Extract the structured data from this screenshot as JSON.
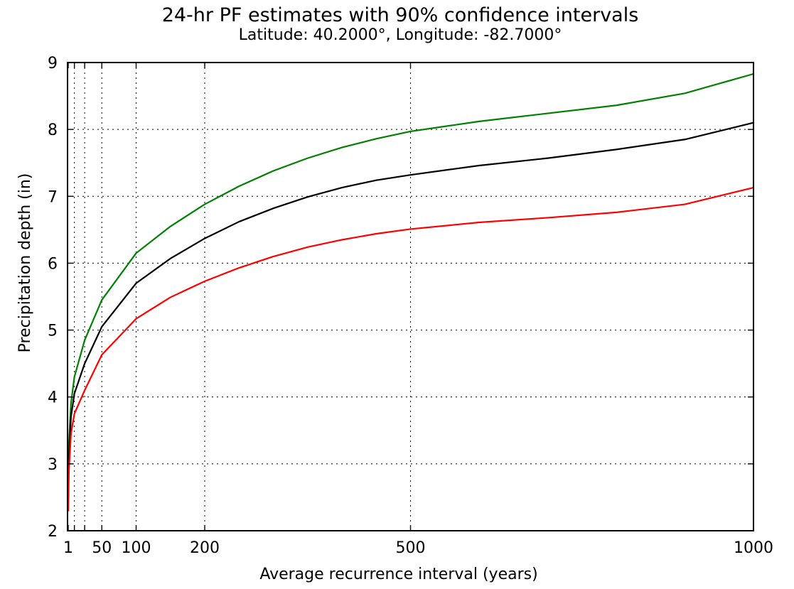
{
  "chart_data": {
    "type": "line",
    "title": "24-hr PF estimates with 90% confidence intervals",
    "subtitle": "Latitude: 40.2000°, Longitude: -82.7000°",
    "xlabel": "Average recurrence interval (years)",
    "ylabel": "Precipitation depth (in)",
    "xlim": [
      0,
      1000
    ],
    "ylim": [
      2,
      9
    ],
    "xticks": [
      1,
      10,
      25,
      50,
      100,
      200,
      500,
      1000
    ],
    "xtick_labels": [
      "1",
      "",
      "",
      "50",
      "100",
      "200",
      "500",
      "1000"
    ],
    "yticks": [
      2,
      3,
      4,
      5,
      6,
      7,
      8,
      9
    ],
    "ytick_labels": [
      "2",
      "3",
      "4",
      "5",
      "6",
      "7",
      "8",
      "9"
    ],
    "grid": true,
    "series": [
      {
        "color": "#008000",
        "x": [
          1,
          2,
          5,
          10,
          25,
          50,
          100,
          150,
          200,
          250,
          300,
          350,
          400,
          450,
          500,
          600,
          700,
          800,
          900,
          1000
        ],
        "y": [
          2.7,
          3.3,
          3.9,
          4.3,
          4.85,
          5.45,
          6.15,
          6.55,
          6.88,
          7.15,
          7.38,
          7.57,
          7.73,
          7.86,
          7.97,
          8.12,
          8.24,
          8.36,
          8.54,
          8.83
        ]
      },
      {
        "color": "#000000",
        "x": [
          1,
          2,
          5,
          10,
          25,
          50,
          100,
          150,
          200,
          250,
          300,
          350,
          400,
          450,
          500,
          600,
          700,
          800,
          900,
          1000
        ],
        "y": [
          2.5,
          3.1,
          3.7,
          4.05,
          4.5,
          5.05,
          5.7,
          6.07,
          6.37,
          6.62,
          6.82,
          6.99,
          7.13,
          7.24,
          7.32,
          7.46,
          7.57,
          7.7,
          7.85,
          8.1
        ]
      },
      {
        "color": "#ff0000",
        "x": [
          1,
          2,
          5,
          10,
          25,
          50,
          100,
          150,
          200,
          250,
          300,
          350,
          400,
          450,
          500,
          600,
          700,
          800,
          900,
          1000
        ],
        "y": [
          2.3,
          2.9,
          3.45,
          3.75,
          4.1,
          4.63,
          5.17,
          5.49,
          5.73,
          5.93,
          6.1,
          6.24,
          6.35,
          6.44,
          6.51,
          6.61,
          6.68,
          6.76,
          6.88,
          7.13
        ]
      }
    ]
  }
}
